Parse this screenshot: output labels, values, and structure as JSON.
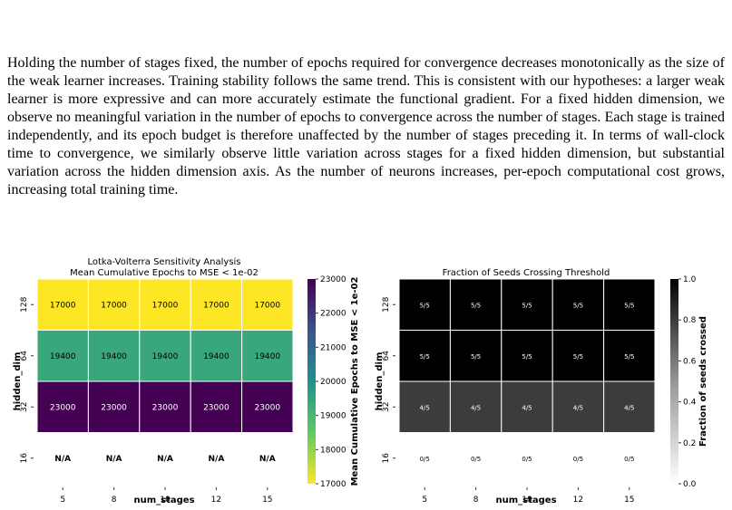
{
  "paragraph": "Holding the number of stages fixed, the number of epochs required for convergence decreases monotonically as the size of the weak learner increases. Training stability follows the same trend. This is consistent with our hypotheses: a larger weak learner is more expressive and can more accurately estimate the functional gradient. For a fixed hidden dimension, we observe no meaningful variation in the number of epochs to convergence across the number of stages. Each stage is trained independently, and its epoch budget is therefore unaffected by the number of stages preceding it. In terms of wall-clock time to convergence, we similarly observe little variation across stages for a fixed hidden dimension, but substantial variation across the hidden dimension axis. As the number of neurons increases, per-epoch computational cost grows, increasing total training time.",
  "chart_data": [
    {
      "type": "heatmap",
      "title": "Lotka-Volterra Sensitivity Analysis",
      "subtitle": "Mean Cumulative Epochs to MSE < 1e-02",
      "xlabel": "num_stages",
      "ylabel": "hidden_dim",
      "x_ticks": [
        "5",
        "8",
        "10",
        "12",
        "15"
      ],
      "y_ticks": [
        "128",
        "64",
        "32",
        "16"
      ],
      "cells": [
        [
          "17000",
          "17000",
          "17000",
          "17000",
          "17000"
        ],
        [
          "19400",
          "19400",
          "19400",
          "19400",
          "19400"
        ],
        [
          "23000",
          "23000",
          "23000",
          "23000",
          "23000"
        ],
        [
          "N/A",
          "N/A",
          "N/A",
          "N/A",
          "N/A"
        ]
      ],
      "values": [
        [
          17000,
          17000,
          17000,
          17000,
          17000
        ],
        [
          19400,
          19400,
          19400,
          19400,
          19400
        ],
        [
          23000,
          23000,
          23000,
          23000,
          23000
        ],
        [
          null,
          null,
          null,
          null,
          null
        ]
      ],
      "colormap": "viridis_r",
      "colorbar": {
        "label": "Mean Cumulative Epochs to MSE < 1e-02",
        "range": [
          17000,
          23000
        ],
        "ticks": [
          "17000",
          "18000",
          "19000",
          "20000",
          "21000",
          "22000",
          "23000"
        ]
      }
    },
    {
      "type": "heatmap",
      "title": "Fraction of Seeds Crossing Threshold",
      "xlabel": "num_stages",
      "ylabel": "hidden_dim",
      "x_ticks": [
        "5",
        "8",
        "10",
        "12",
        "15"
      ],
      "y_ticks": [
        "128",
        "64",
        "32",
        "16"
      ],
      "cells": [
        [
          "5/5",
          "5/5",
          "5/5",
          "5/5",
          "5/5"
        ],
        [
          "5/5",
          "5/5",
          "5/5",
          "5/5",
          "5/5"
        ],
        [
          "4/5",
          "4/5",
          "4/5",
          "4/5",
          "4/5"
        ],
        [
          "0/5",
          "0/5",
          "0/5",
          "0/5",
          "0/5"
        ]
      ],
      "values": [
        [
          1.0,
          1.0,
          1.0,
          1.0,
          1.0
        ],
        [
          1.0,
          1.0,
          1.0,
          1.0,
          1.0
        ],
        [
          0.8,
          0.8,
          0.8,
          0.8,
          0.8
        ],
        [
          0.0,
          0.0,
          0.0,
          0.0,
          0.0
        ]
      ],
      "colormap": "Greys",
      "colorbar": {
        "label": "Fraction of seeds crossed",
        "range": [
          0,
          1
        ],
        "ticks": [
          "0.0",
          "0.2",
          "0.4",
          "0.6",
          "0.8",
          "1.0"
        ]
      }
    }
  ]
}
